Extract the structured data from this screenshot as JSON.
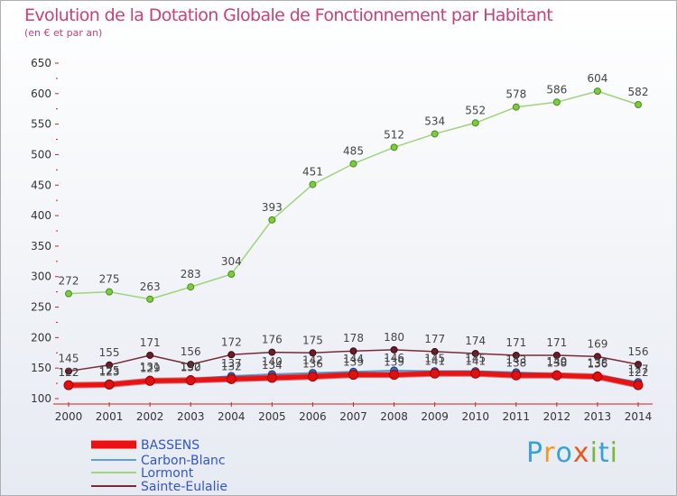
{
  "title": "Evolution de la Dotation Globale de Fonctionnement par Habitant",
  "subtitle": "(en € et par an)",
  "logo": [
    "P",
    "r",
    "o",
    "x",
    "i",
    "t",
    "i"
  ],
  "chart_data": {
    "type": "line",
    "title": "Evolution de la Dotation Globale de Fonctionnement par Habitant",
    "ylabel": "(en € et par an)",
    "xlabel": "",
    "x": [
      "2000",
      "2001",
      "2002",
      "2003",
      "2004",
      "2005",
      "2006",
      "2007",
      "2008",
      "2009",
      "2010",
      "2011",
      "2012",
      "2013",
      "2014"
    ],
    "ylim": [
      100,
      650
    ],
    "yticks": [
      100,
      150,
      200,
      250,
      300,
      350,
      400,
      450,
      500,
      550,
      600,
      650
    ],
    "grid": false,
    "legend": "bottom-left",
    "series": [
      {
        "name": "BASSENS",
        "color": "#ee1111",
        "values": [
          122,
          123,
          129,
          130,
          132,
          134,
          136,
          139,
          139,
          141,
          141,
          138,
          138,
          136,
          122
        ]
      },
      {
        "name": "Carbon-Blanc",
        "color": "#5aa0dc",
        "values": [
          122,
          125,
          131,
          132,
          137,
          140,
          142,
          144,
          146,
          145,
          145,
          143,
          140,
          138,
          127
        ]
      },
      {
        "name": "Lormont",
        "color": "#9fd47a",
        "values": [
          272,
          275,
          263,
          283,
          304,
          393,
          451,
          485,
          512,
          534,
          552,
          578,
          586,
          604,
          582
        ]
      },
      {
        "name": "Sainte-Eulalie",
        "color": "#7a2a35",
        "values": [
          145,
          155,
          171,
          156,
          172,
          176,
          175,
          178,
          180,
          177,
          174,
          171,
          171,
          169,
          156
        ]
      }
    ]
  }
}
